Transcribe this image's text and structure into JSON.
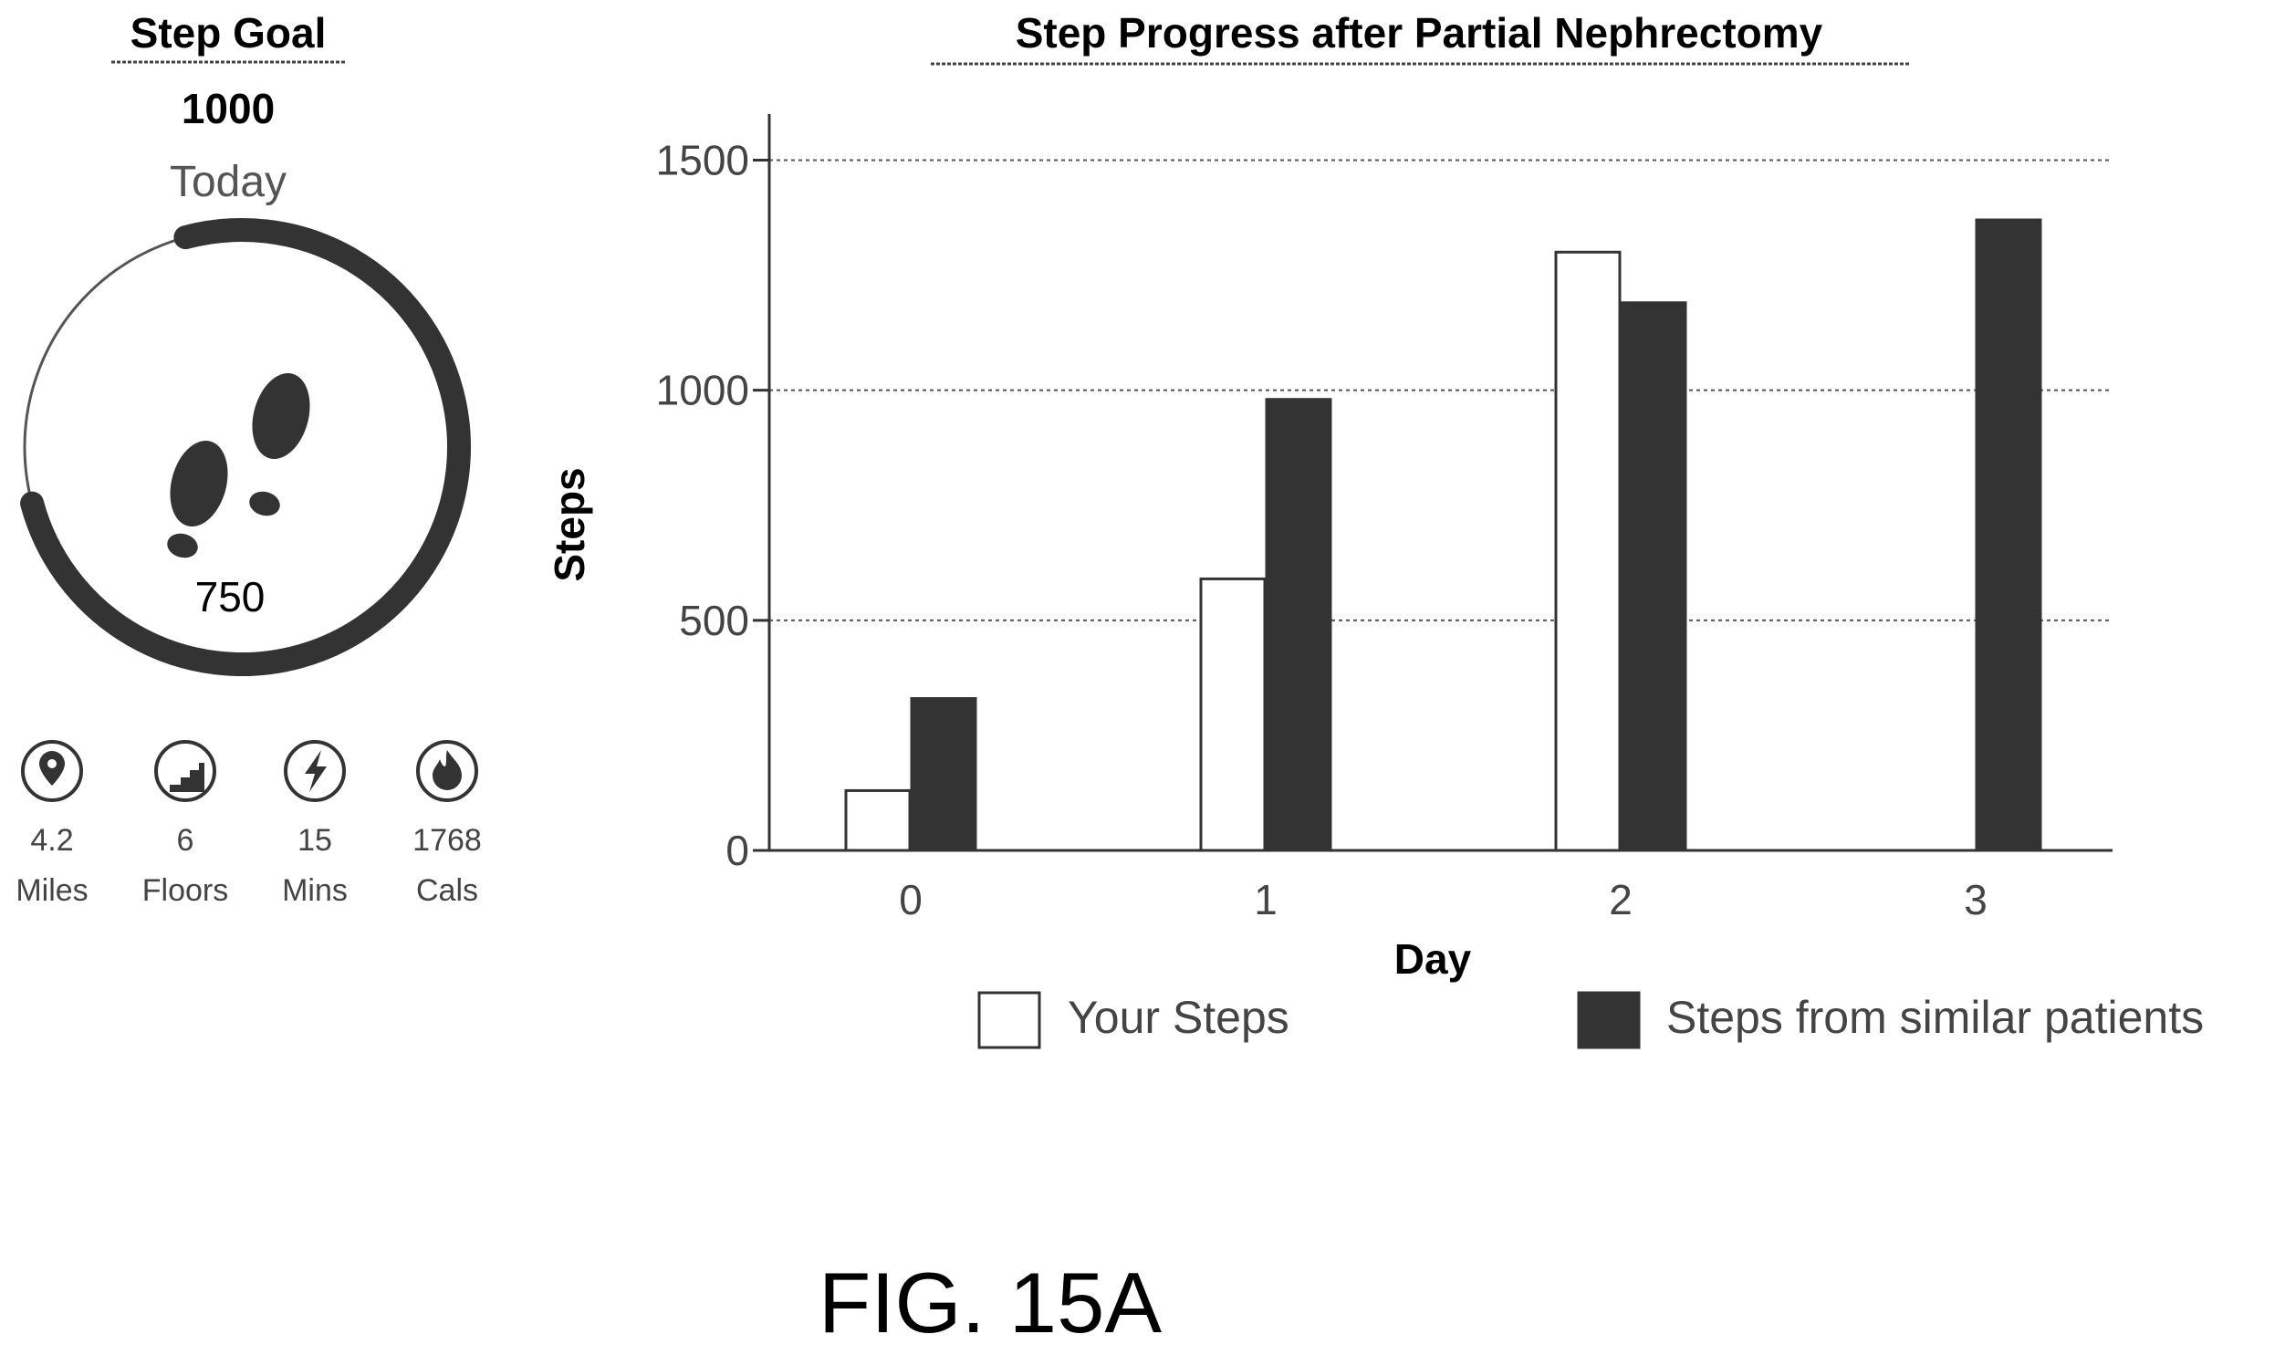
{
  "widget": {
    "title": "Step Goal",
    "goal_value": "1000",
    "period": "Today",
    "current_steps": "750",
    "progress": 0.75,
    "ring_color": "#333333",
    "stats": [
      {
        "icon": "location-pin-icon",
        "value": "4.2",
        "unit": "Miles"
      },
      {
        "icon": "stairs-icon",
        "value": "6",
        "unit": "Floors"
      },
      {
        "icon": "lightning-bolt-icon",
        "value": "15",
        "unit": "Mins"
      },
      {
        "icon": "flame-icon",
        "value": "1768",
        "unit": "Cals"
      }
    ]
  },
  "chart_data": {
    "type": "bar",
    "title": "Step Progress after Partial Nephrectomy",
    "xlabel": "Day",
    "ylabel": "Steps",
    "categories": [
      "0",
      "1",
      "2",
      "3"
    ],
    "ylim": [
      0,
      1600
    ],
    "yticks": [
      0,
      500,
      1000,
      1500
    ],
    "grid": "horizontal-dotted",
    "legend_position": "bottom",
    "series": [
      {
        "name": "Your Steps",
        "values": [
          130,
          590,
          1300,
          null
        ],
        "color": "#ffffff"
      },
      {
        "name": "Steps from similar patients",
        "values": [
          330,
          980,
          1190,
          1370
        ],
        "color": "#333333"
      }
    ]
  },
  "figure_label": "FIG. 15A"
}
